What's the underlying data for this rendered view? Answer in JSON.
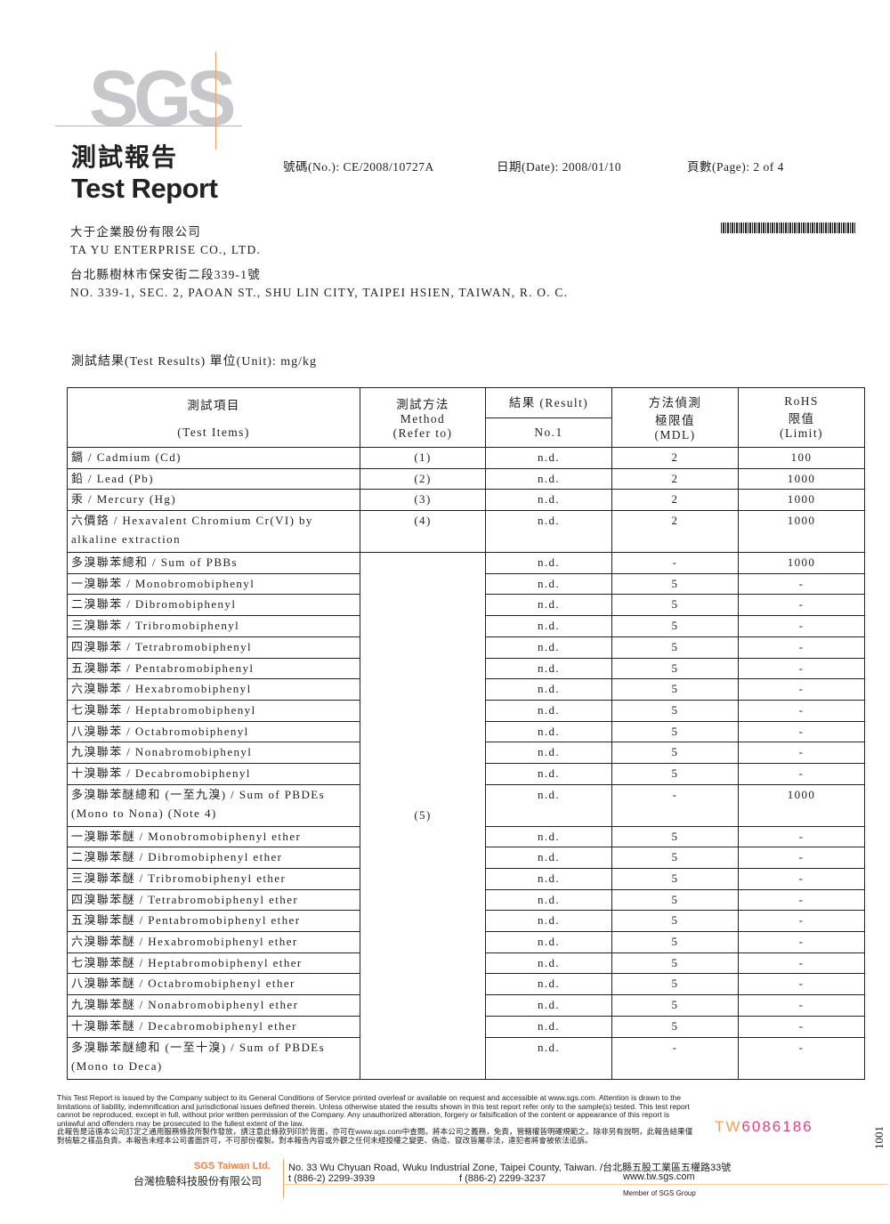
{
  "header": {
    "logo": "SGS",
    "title_zh": "測試報告",
    "title_en": "Test Report",
    "report_no": "號碼(No.): CE/2008/10727A",
    "date": "日期(Date): 2008/01/10",
    "page": "頁數(Page): 2 of 4"
  },
  "client": {
    "name_zh": "大于企業股份有限公司",
    "name_en": "TA YU ENTERPRISE CO., LTD.",
    "address_zh": "台北縣樹林市保安街二段339-1號",
    "address_en": "NO. 339-1, SEC. 2, PAOAN ST., SHU LIN CITY, TAIPEI HSIEN, TAIWAN, R. O. C."
  },
  "unit_line": "測試結果(Test Results) 單位(Unit): mg/kg",
  "table": {
    "headers": {
      "items_zh": "測試項目",
      "items_en": "(Test Items)",
      "method_zh": "測試方法",
      "method_en": "Method",
      "method_ref": "(Refer to)",
      "result": "結果 (Result)",
      "result_no": "No.1",
      "mdl_zh1": "方法偵測",
      "mdl_zh2": "極限值",
      "mdl_en": "(MDL)",
      "limit_1": "RoHS",
      "limit_2": "限值",
      "limit_3": "(Limit)"
    },
    "rows": [
      {
        "item": "鎘 / Cadmium (Cd)",
        "method": "(1)",
        "result": "n.d.",
        "mdl": "2",
        "limit": "100"
      },
      {
        "item": "鉛 / Lead (Pb)",
        "method": "(2)",
        "result": "n.d.",
        "mdl": "2",
        "limit": "1000"
      },
      {
        "item": "汞 / Mercury (Hg)",
        "method": "(3)",
        "result": "n.d.",
        "mdl": "2",
        "limit": "1000"
      },
      {
        "item": "六價鉻 / Hexavalent Chromium Cr(VI) by alkaline extraction",
        "method": "(4)",
        "result": "n.d.",
        "mdl": "2",
        "limit": "1000"
      },
      {
        "item": "多溴聯苯總和 / Sum of PBBs",
        "result": "n.d.",
        "mdl": "-",
        "limit": "1000"
      },
      {
        "item": "一溴聯苯 / Monobromobiphenyl",
        "result": "n.d.",
        "mdl": "5",
        "limit": "-"
      },
      {
        "item": "二溴聯苯 / Dibromobiphenyl",
        "result": "n.d.",
        "mdl": "5",
        "limit": "-"
      },
      {
        "item": "三溴聯苯 / Tribromobiphenyl",
        "result": "n.d.",
        "mdl": "5",
        "limit": "-"
      },
      {
        "item": "四溴聯苯 / Tetrabromobiphenyl",
        "result": "n.d.",
        "mdl": "5",
        "limit": "-"
      },
      {
        "item": "五溴聯苯 / Pentabromobiphenyl",
        "result": "n.d.",
        "mdl": "5",
        "limit": "-"
      },
      {
        "item": "六溴聯苯 / Hexabromobiphenyl",
        "result": "n.d.",
        "mdl": "5",
        "limit": "-"
      },
      {
        "item": "七溴聯苯 / Heptabromobiphenyl",
        "result": "n.d.",
        "mdl": "5",
        "limit": "-"
      },
      {
        "item": "八溴聯苯 / Octabromobiphenyl",
        "result": "n.d.",
        "mdl": "5",
        "limit": "-"
      },
      {
        "item": "九溴聯苯 / Nonabromobiphenyl",
        "result": "n.d.",
        "mdl": "5",
        "limit": "-"
      },
      {
        "item": "十溴聯苯 / Decabromobiphenyl",
        "result": "n.d.",
        "mdl": "5",
        "limit": "-"
      },
      {
        "item": "多溴聯苯醚總和 (一至九溴) / Sum of PBDEs (Mono to Nona) (Note 4)",
        "result": "n.d.",
        "mdl": "-",
        "limit": "1000"
      },
      {
        "item": "一溴聯苯醚 / Monobromobiphenyl ether",
        "result": "n.d.",
        "mdl": "5",
        "limit": "-"
      },
      {
        "item": "二溴聯苯醚 / Dibromobiphenyl ether",
        "result": "n.d.",
        "mdl": "5",
        "limit": "-"
      },
      {
        "item": "三溴聯苯醚 / Tribromobiphenyl ether",
        "result": "n.d.",
        "mdl": "5",
        "limit": "-"
      },
      {
        "item": "四溴聯苯醚 / Tetrabromobiphenyl ether",
        "result": "n.d.",
        "mdl": "5",
        "limit": "-"
      },
      {
        "item": "五溴聯苯醚 / Pentabromobiphenyl ether",
        "result": "n.d.",
        "mdl": "5",
        "limit": "-"
      },
      {
        "item": "六溴聯苯醚 / Hexabromobiphenyl ether",
        "result": "n.d.",
        "mdl": "5",
        "limit": "-"
      },
      {
        "item": "七溴聯苯醚 / Heptabromobiphenyl ether",
        "result": "n.d.",
        "mdl": "5",
        "limit": "-"
      },
      {
        "item": "八溴聯苯醚 / Octabromobiphenyl ether",
        "result": "n.d.",
        "mdl": "5",
        "limit": "-"
      },
      {
        "item": "九溴聯苯醚 / Nonabromobiphenyl ether",
        "result": "n.d.",
        "mdl": "5",
        "limit": "-"
      },
      {
        "item": "十溴聯苯醚 / Decabromobiphenyl ether",
        "result": "n.d.",
        "mdl": "5",
        "limit": "-"
      },
      {
        "item": "多溴聯苯醚總和 (一至十溴) / Sum of PBDEs (Mono to Deca)",
        "result": "n.d.",
        "mdl": "-",
        "limit": "-"
      }
    ],
    "merged_method": "(5)"
  },
  "footer": {
    "disclaimer_en": "This Test Report is issued by the Company subject to its General Conditions of Service printed overleaf or available on request and accessible at www.sgs.com. Attention is drawn to the limitations of liability, indemnification and jurisdictional issues defined therein. Unless otherwise stated the results shown in this test report refer only to the sample(s) tested. This test report cannot be reproduced, except in full, without prior written permission of the Company. Any unauthorized alteration, forgery or falsification of the content or appearance of this report is unlawful and offenders may be prosecuted to the fullest extent of the law.",
    "disclaimer_zh": "此報告是這循本公司訂定之通用服務條款所製作發放，請注意此條款列印於背面，亦可在www.sgs.com中查閱。將本公司之義務，免責，管轄權皆明確規範之。除非另有說明，此報告結果僅對檢驗之樣品負責。本報告未經本公司書面許可，不可部份複製。對本報告內容或外觀之任何未經授權之變更、偽造、竄改皆屬非法，違犯者將會被依法追訴。",
    "serial_prefix": "TW",
    "serial": "6086186",
    "side_number": "1001",
    "company_en": "SGS Taiwan Ltd.",
    "company_zh": "台灣檢驗科技股份有限公司",
    "address": "No. 33 Wu Chyuan Road, Wuku Industrial Zone, Taipei County, Taiwan. /台北縣五股工業區五權路33號",
    "tel": "t (886-2) 2299-3939",
    "fax": "f (886-2) 2299-3237",
    "web": "www.tw.sgs.com",
    "member": "Member of SGS Group"
  },
  "colors": {
    "sgs_orange": "#f0a060",
    "serial_pink": "#e0408a"
  }
}
